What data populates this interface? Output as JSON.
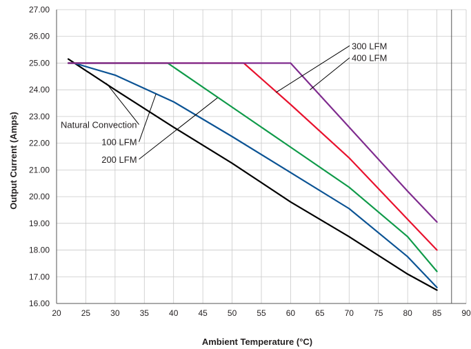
{
  "chart_data": {
    "type": "line",
    "title": "",
    "xlabel": "Ambient Temperature (°C)",
    "ylabel": "Output Current (Amps)",
    "xlim": [
      20,
      90
    ],
    "ylim": [
      16,
      27
    ],
    "x_ticks": [
      20,
      25,
      30,
      35,
      40,
      45,
      50,
      55,
      60,
      65,
      70,
      75,
      80,
      85,
      90
    ],
    "y_ticks": [
      16,
      17,
      18,
      19,
      20,
      21,
      22,
      23,
      24,
      25,
      26,
      27
    ],
    "x_tick_labels": [
      "20",
      "25",
      "30",
      "35",
      "40",
      "45",
      "50",
      "55",
      "60",
      "65",
      "70",
      "75",
      "80",
      "85",
      "90"
    ],
    "y_tick_labels": [
      "16.00",
      "17.00",
      "18.00",
      "19.00",
      "20.00",
      "21.00",
      "22.00",
      "23.00",
      "24.00",
      "25.00",
      "26.00",
      "27.00"
    ],
    "grid": true,
    "legend": "callout labels with leader lines",
    "series": [
      {
        "name": "Natural Convection",
        "color": "#000000",
        "x": [
          22,
          30,
          40,
          50,
          60,
          70,
          80,
          85
        ],
        "y": [
          25.15,
          24.0,
          22.6,
          21.25,
          19.8,
          18.5,
          17.1,
          16.5
        ]
      },
      {
        "name": "100 LFM",
        "color": "#0b5394",
        "x": [
          22,
          23,
          30,
          40,
          50,
          60,
          70,
          80,
          85
        ],
        "y": [
          25.0,
          25.0,
          24.55,
          23.55,
          22.25,
          20.9,
          19.55,
          17.75,
          16.6
        ]
      },
      {
        "name": "200 LFM",
        "color": "#0f9a49",
        "x": [
          22,
          39,
          50,
          60,
          70,
          80,
          85
        ],
        "y": [
          25.0,
          25.0,
          23.35,
          21.85,
          20.35,
          18.5,
          17.2
        ]
      },
      {
        "name": "300 LFM",
        "color": "#e8112d",
        "x": [
          22,
          52,
          60,
          70,
          80,
          85
        ],
        "y": [
          25.0,
          25.0,
          23.45,
          21.45,
          19.15,
          18.0
        ]
      },
      {
        "name": "400 LFM",
        "color": "#7f2b8e",
        "x": [
          22,
          60,
          70,
          80,
          85
        ],
        "y": [
          25.0,
          25.0,
          22.6,
          20.2,
          19.05
        ]
      }
    ],
    "callouts": [
      {
        "series": "Natural Convection",
        "label": "Natural Convection",
        "side": "left",
        "text_x": 20.3,
        "text_y": 22.7,
        "target_x": 28.5,
        "target_y": 24.25
      },
      {
        "series": "100 LFM",
        "label": "100 LFM",
        "side": "left",
        "text_x": 20.3,
        "text_y": 22.05,
        "target_x": 37.0,
        "target_y": 23.85
      },
      {
        "series": "200 LFM",
        "label": "200 LFM",
        "side": "left",
        "text_x": 20.3,
        "text_y": 21.4,
        "target_x": 47.5,
        "target_y": 23.7
      },
      {
        "series": "300 LFM",
        "label": "300 LFM",
        "side": "right",
        "text_x": 70.2,
        "text_y": 25.65,
        "target_x": 57.5,
        "target_y": 23.9
      },
      {
        "series": "400 LFM",
        "label": "400 LFM",
        "side": "right",
        "text_x": 70.2,
        "text_y": 25.2,
        "target_x": 63.3,
        "target_y": 24.0
      }
    ]
  }
}
